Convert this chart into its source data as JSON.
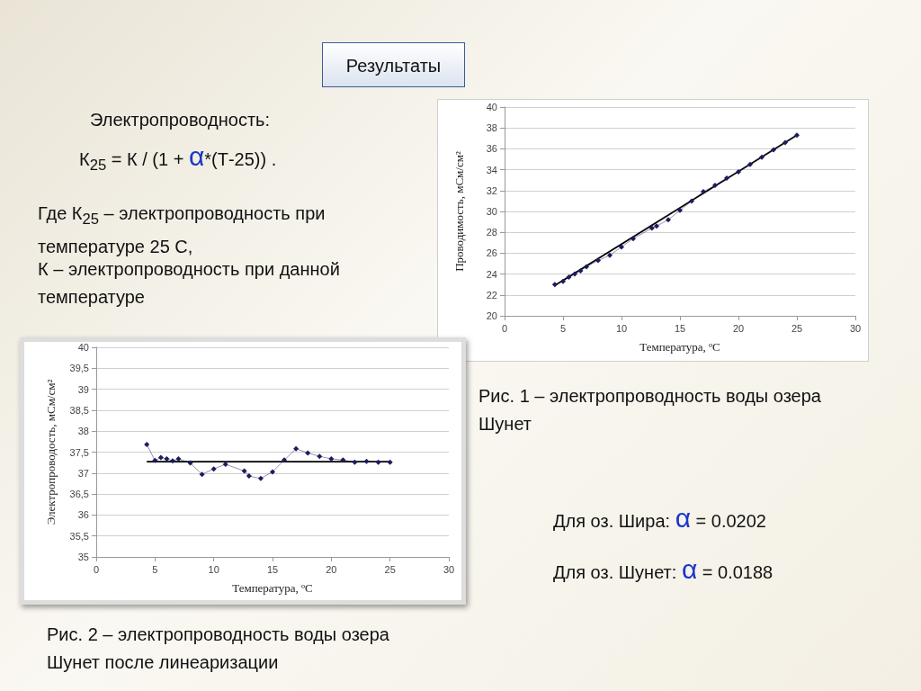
{
  "chart_data": [
    {
      "type": "line",
      "xlabel": "Температура, ºС",
      "ylabel": "Проводимость, мСм/см²",
      "annotations": [
        "Рис. 1 – электропроводность воды озера Шунет"
      ],
      "xlim": [
        0,
        30
      ],
      "xticks": [
        0,
        5,
        10,
        15,
        20,
        25,
        30
      ],
      "ylim": [
        20,
        40
      ],
      "yticks": [
        20,
        22,
        24,
        26,
        28,
        30,
        32,
        34,
        36,
        38,
        40
      ],
      "grid": "y",
      "series": [
        {
          "type": "line",
          "color": "#1c1c5e",
          "marker": "diamond",
          "x": [
            4.3,
            5,
            5.5,
            6,
            6.5,
            7,
            8,
            9,
            10,
            11,
            12.6,
            13,
            14,
            15,
            16,
            17,
            18,
            19,
            20,
            21,
            22,
            23,
            24,
            25
          ],
          "values": [
            23.0,
            23.3,
            23.7,
            24.0,
            24.3,
            24.7,
            25.3,
            25.8,
            26.6,
            27.4,
            28.4,
            28.6,
            29.2,
            30.1,
            31.0,
            31.9,
            32.5,
            33.2,
            33.8,
            34.5,
            35.2,
            35.9,
            36.6,
            37.3
          ]
        },
        {
          "type": "line",
          "color": "#000000",
          "marker": "none",
          "x": [
            4.3,
            25
          ],
          "values": [
            22.9,
            37.3
          ]
        }
      ]
    },
    {
      "type": "line",
      "xlabel": "Температура, ºС",
      "ylabel": "Электропроводость, мСм/см²",
      "annotations": [
        "Рис. 2 – электропроводность воды озера Шунет после линеаризации"
      ],
      "xlim": [
        0,
        30
      ],
      "xticks": [
        0,
        5,
        10,
        15,
        20,
        25,
        30
      ],
      "ylim": [
        35,
        40
      ],
      "yticks": [
        35,
        {
          "value": 35.5,
          "label": "35,5"
        },
        36,
        {
          "value": 36.5,
          "label": "36,5"
        },
        37,
        {
          "value": 37.5,
          "label": "37,5"
        },
        38,
        {
          "value": 38.5,
          "label": "38,5"
        },
        39,
        {
          "value": 39.5,
          "label": "39,5"
        },
        40
      ],
      "grid": "y",
      "series": [
        {
          "type": "line",
          "color": "#1c1c5e",
          "marker": "diamond",
          "x": [
            4.3,
            5,
            5.5,
            6,
            6.5,
            7,
            8,
            9,
            10,
            11,
            12.6,
            13,
            14,
            15,
            16,
            17,
            18,
            19,
            20,
            21,
            22,
            23,
            24,
            25
          ],
          "values": [
            37.68,
            37.3,
            37.37,
            37.34,
            37.29,
            37.34,
            37.24,
            36.97,
            37.1,
            37.21,
            37.05,
            36.93,
            36.87,
            37.03,
            37.31,
            37.58,
            37.48,
            37.4,
            37.34,
            37.31,
            37.26,
            37.28,
            37.26,
            37.26
          ]
        },
        {
          "type": "line",
          "color": "#000000",
          "marker": "none",
          "x": [
            4.3,
            25
          ],
          "values": [
            37.27,
            37.27
          ]
        }
      ]
    },
    {
      "type": "other",
      "title": "Результаты",
      "annotations": [
        "Электропроводность:",
        "К$_{25}$ = К / (1 + α*(Т-25)) .",
        "Где К$_{25}$ – электропроводность при температуре 25 С,",
        "К – электропроводность при данной температуре",
        "Для оз. Шира: α = 0.0202",
        "Для оз. Шунет: α = 0.0188"
      ]
    }
  ]
}
